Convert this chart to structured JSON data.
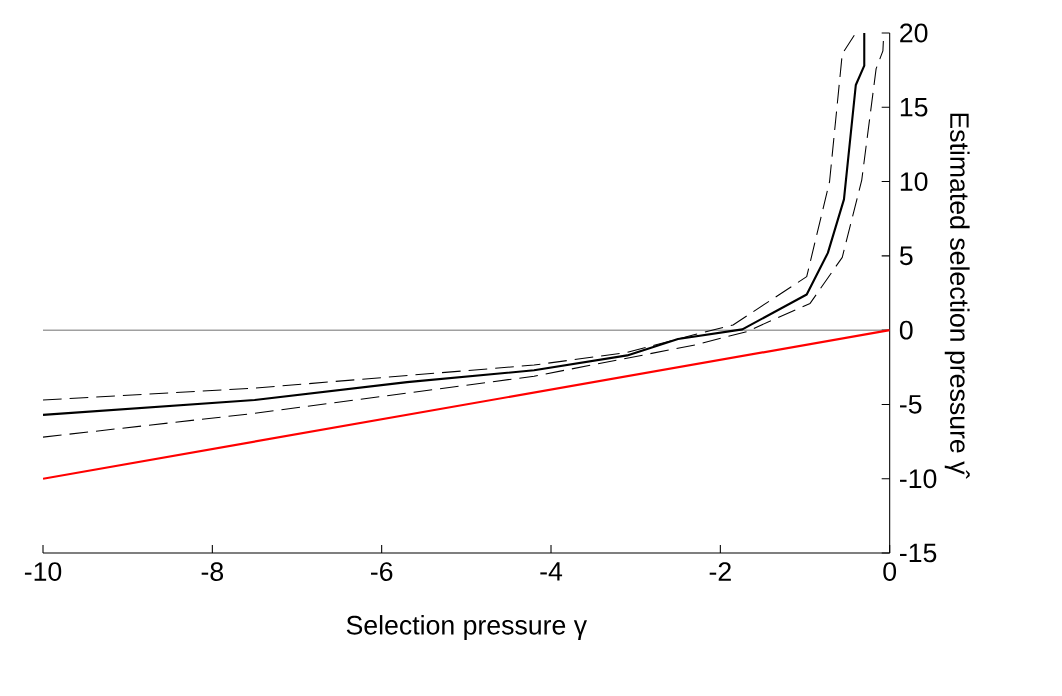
{
  "chart_data": {
    "type": "line",
    "xlabel": "Selection pressure γ",
    "ylabel": "Estimated selection pressure γ̂",
    "xlim": [
      -10,
      0
    ],
    "ylim": [
      -15,
      20
    ],
    "xticks": [
      -10,
      -8,
      -6,
      -4,
      -2,
      0
    ],
    "yticks": [
      -15,
      -10,
      -5,
      0,
      5,
      10,
      15,
      20
    ],
    "grid": false,
    "marker": "none",
    "ref_lines": [
      {
        "axis": "y",
        "value": 0,
        "color": "#808080",
        "line_style": "solid"
      }
    ],
    "series": [
      {
        "color": "#000000",
        "line_style": "solid",
        "x": [
          -10,
          -7.5,
          -5.7,
          -4.2,
          -3.1,
          -2.5,
          -1.74,
          -0.98,
          -0.73,
          -0.54,
          -0.4,
          -0.3,
          -0.3
        ],
        "values": [
          -5.7,
          -4.7,
          -3.5,
          -2.7,
          -1.7,
          -0.6,
          0.05,
          2.4,
          5.2,
          8.8,
          16.5,
          17.8,
          20
        ]
      },
      {
        "color": "#000000",
        "line_style": "dashed",
        "x": [
          -10,
          -7.5,
          -4.2,
          -3.1,
          -2.3,
          -1.85,
          -0.98,
          -0.71,
          -0.56,
          -0.4
        ],
        "values": [
          -4.7,
          -3.9,
          -2.35,
          -1.5,
          -0.3,
          0.35,
          3.6,
          10,
          18.6,
          20
        ]
      },
      {
        "color": "#000000",
        "line_style": "dashed",
        "x": [
          -10,
          -7.5,
          -4.2,
          -2.3,
          -1.69,
          -0.94,
          -0.56,
          -0.33,
          -0.16,
          -0.08,
          -0.07
        ],
        "values": [
          -7.2,
          -5.6,
          -3.1,
          -1.0,
          -0.1,
          1.8,
          4.9,
          10.1,
          17.6,
          18.8,
          20
        ]
      },
      {
        "color": "#ff0000",
        "line_style": "solid",
        "x": [
          -10,
          0
        ],
        "values": [
          -10,
          0
        ]
      }
    ]
  }
}
